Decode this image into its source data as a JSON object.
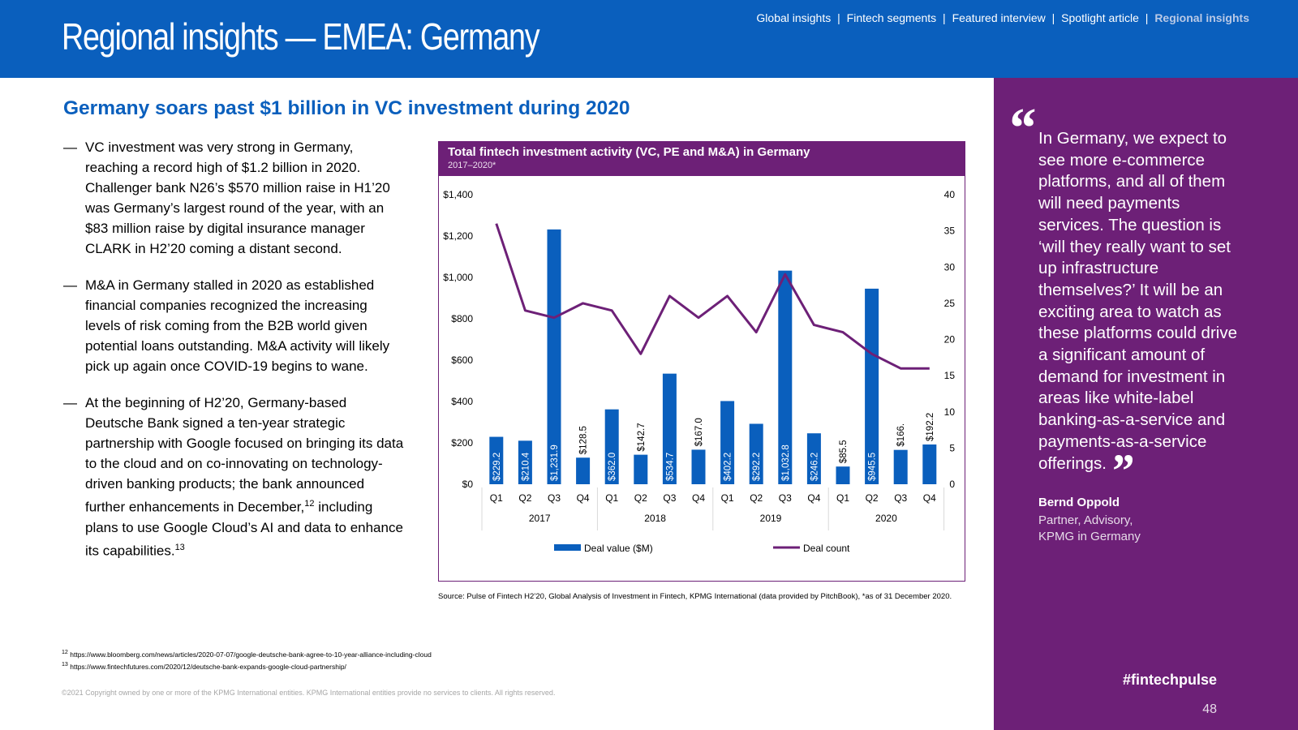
{
  "header": {
    "title": "Regional insights — EMEA: Germany",
    "nav": [
      "Global insights",
      "Fintech segments",
      "Featured interview",
      "Spotlight article",
      "Regional insights"
    ],
    "nav_separator": "|"
  },
  "main": {
    "subheading": "Germany soars past $1 billion in VC investment during 2020",
    "bullets": [
      "VC investment was very strong in Germany, reaching a record high of $1.2 billion in 2020. Challenger bank N26’s $570 million raise in H1’20 was Germany’s largest round of the year, with an $83 million raise by digital insurance manager CLARK in H2’20 coming a distant second.",
      "M&A in Germany stalled in 2020 as established financial companies recognized the increasing levels of risk coming from the B2B world given potential loans outstanding. M&A activity will likely pick up again once COVID-19 begins to wane.",
      "At the beginning of H2’20, Germany-based Deutsche Bank signed a ten-year strategic partnership with Google focused on bringing its data to the cloud and on co-innovating on technology-driven banking products; the bank announced further enhancements in December,"
    ],
    "bullet3_sup1": "12",
    "bullet3_tail": " including plans to use Google Cloud’s AI and data to enhance its capabilities.",
    "bullet3_sup2": "13",
    "dash": "—"
  },
  "chart_data": {
    "type": "bar",
    "title": "Total fintech investment activity (VC, PE and M&A) in Germany",
    "subtitle": "2017–2020*",
    "categories": [
      "Q1",
      "Q2",
      "Q3",
      "Q4",
      "Q1",
      "Q2",
      "Q3",
      "Q4",
      "Q1",
      "Q2",
      "Q3",
      "Q4",
      "Q1",
      "Q2",
      "Q3",
      "Q4"
    ],
    "groups": [
      "2017",
      "2018",
      "2019",
      "2020"
    ],
    "series": [
      {
        "name": "Deal value ($M)",
        "type": "bar",
        "axis": "left",
        "color": "#0a5fbd",
        "values": [
          229.2,
          210.4,
          1231.9,
          128.5,
          362.0,
          142.7,
          534.7,
          167.0,
          402.2,
          292.2,
          1032.8,
          246.2,
          85.5,
          945.5,
          166.0,
          192.2
        ],
        "labels": [
          "$229.2",
          "$210.4",
          "$1,231.9",
          "$128.5",
          "$362.0",
          "$142.7",
          "$534.7",
          "$167.0",
          "$402.2",
          "$292.2",
          "$1,032.8",
          "$246.2",
          "$85.5",
          "$945.5",
          "$166.",
          "$192.2"
        ]
      },
      {
        "name": "Deal count",
        "type": "line",
        "axis": "right",
        "color": "#6d2077",
        "values": [
          36,
          24,
          23,
          25,
          24,
          18,
          26,
          23,
          26,
          21,
          29,
          22,
          21,
          18,
          16,
          16
        ]
      }
    ],
    "ylim_left": [
      0,
      1400
    ],
    "ylim_right": [
      0,
      40
    ],
    "left_ticks": [
      "$0",
      "$200",
      "$400",
      "$600",
      "$800",
      "$1,000",
      "$1,200",
      "$1,400"
    ],
    "right_ticks": [
      "0",
      "5",
      "10",
      "15",
      "20",
      "25",
      "30",
      "35",
      "40"
    ],
    "grid": false,
    "legend_position": "bottom"
  },
  "source": "Source: Pulse of Fintech H2’20, Global Analysis of Investment in Fintech, KPMG International (data provided by PitchBook), *as of 31 December 2020.",
  "footnotes": [
    {
      "num": "12",
      "text": "https://www.bloomberg.com/news/articles/2020-07-07/google-deutsche-bank-agree-to-10-year-alliance-including-cloud"
    },
    {
      "num": "13",
      "text": "https://www.fintechfutures.com/2020/12/deutsche-bank-expands-google-cloud-partnership/"
    }
  ],
  "copyright": "©2021 Copyright owned by one or more of the KPMG International entities. KPMG International entities provide no services to clients. All rights reserved.",
  "sidebar": {
    "quote_open": "“",
    "quote": "In Germany, we expect to see more e-commerce platforms, and all of them will need payments services. The question is ‘will they really want to set up infrastructure themselves?’ It will be an exciting area to watch as these platforms could drive a significant amount of demand for investment in areas like white-label banking-as-a-service and payments-as-a-service offerings.",
    "quote_close": "”",
    "name": "Bernd Oppold",
    "role_line1": "Partner, Advisory,",
    "role_line2": "KPMG in Germany",
    "hashtag": "#fintechpulse",
    "page_number": "48"
  }
}
